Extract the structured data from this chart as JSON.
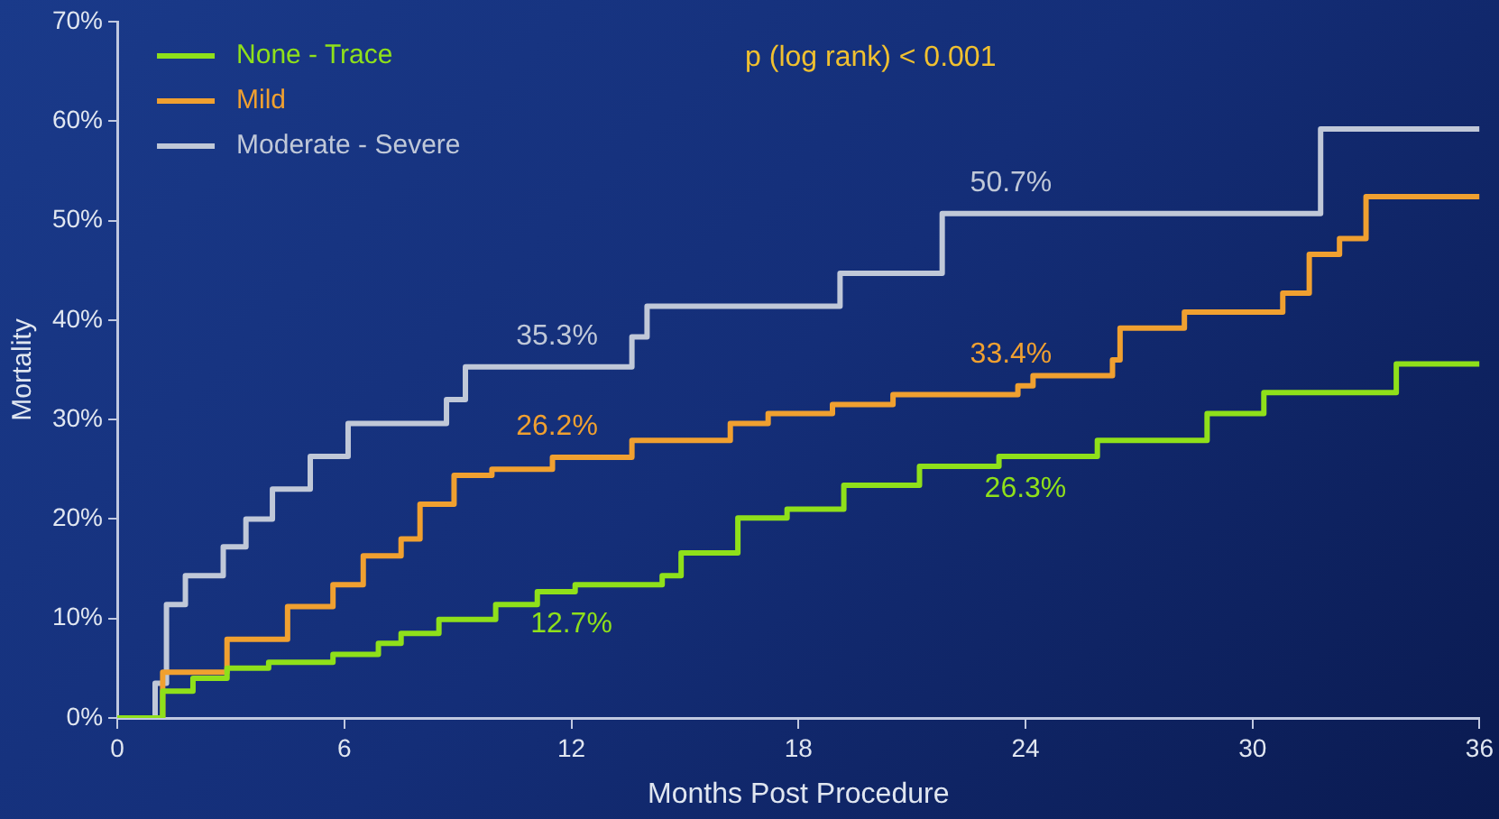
{
  "chart_data": {
    "type": "step",
    "xlabel": "Months Post Procedure",
    "ylabel": "Mortality",
    "xlim": [
      0,
      36
    ],
    "xticks": [
      0,
      6,
      12,
      18,
      24,
      30,
      36
    ],
    "ylim": [
      0,
      70
    ],
    "yticks": [
      {
        "value": 0,
        "label": "0%"
      },
      {
        "value": 10,
        "label": "10%"
      },
      {
        "value": 20,
        "label": "20%"
      },
      {
        "value": 30,
        "label": "30%"
      },
      {
        "value": 40,
        "label": "40%"
      },
      {
        "value": 50,
        "label": "50%"
      },
      {
        "value": 60,
        "label": "60%"
      },
      {
        "value": 70,
        "label": "70%"
      }
    ],
    "grid": false,
    "legend": "top left",
    "marker": "none",
    "line_style": "solid",
    "series": [
      {
        "name": "None - Trace",
        "color": "#8fe01a",
        "x": [
          0,
          1.2,
          2.0,
          2.9,
          4.0,
          5.7,
          6.9,
          7.5,
          8.5,
          10.0,
          11.1,
          12,
          12.1,
          14.4,
          14.9,
          16.4,
          17.7,
          19.2,
          21.2,
          23.3,
          24,
          25.9,
          28.8,
          30.3,
          33.8,
          36
        ],
        "values": [
          0,
          2.7,
          4,
          5,
          5.6,
          6.4,
          7.5,
          8.5,
          9.9,
          11.4,
          12.7,
          12.7,
          13.4,
          14.3,
          16.6,
          20.1,
          21,
          23.4,
          25.3,
          26.3,
          26.3,
          27.9,
          30.6,
          32.7,
          35.6,
          35.6
        ],
        "value_labels": [
          null,
          null,
          null,
          null,
          null,
          null,
          null,
          null,
          null,
          null,
          null,
          "12.7%",
          null,
          null,
          null,
          null,
          null,
          null,
          null,
          null,
          "26.3%",
          null,
          null,
          null,
          null,
          null
        ]
      },
      {
        "name": "Mild",
        "color": "#f0a030",
        "x": [
          0,
          1.2,
          2.9,
          4.5,
          5.7,
          6.5,
          7.5,
          8.0,
          8.9,
          9.9,
          11.5,
          12,
          13.6,
          16.2,
          17.2,
          18.9,
          20.5,
          23.8,
          24,
          24.2,
          26.3,
          26.5,
          28.2,
          30.8,
          31.5,
          32.3,
          33.0,
          36
        ],
        "values": [
          0,
          4.6,
          7.9,
          11.2,
          13.4,
          16.3,
          18,
          21.5,
          24.4,
          25,
          26.2,
          26.2,
          27.9,
          29.6,
          30.6,
          31.5,
          32.5,
          33.4,
          33.4,
          34.4,
          36,
          39.2,
          40.8,
          42.7,
          46.6,
          48.2,
          52.4,
          52.4
        ],
        "value_labels": [
          null,
          null,
          null,
          null,
          null,
          null,
          null,
          null,
          null,
          null,
          null,
          "26.2%",
          null,
          null,
          null,
          null,
          null,
          null,
          "33.4%",
          null,
          null,
          null,
          null,
          null,
          null,
          null,
          null,
          null
        ]
      },
      {
        "name": "Moderate - Severe",
        "color": "#c0c8d8",
        "x": [
          0,
          1.0,
          1.3,
          1.8,
          2.8,
          3.4,
          4.1,
          5.1,
          6.1,
          8.7,
          9.2,
          12,
          13.6,
          14.0,
          19.1,
          21.8,
          24,
          31.8,
          36
        ],
        "values": [
          0,
          3.5,
          11.4,
          14.3,
          17.2,
          20,
          23,
          26.3,
          29.6,
          32,
          35.3,
          35.3,
          38.3,
          41.4,
          44.7,
          50.7,
          50.7,
          59.2,
          59.2
        ],
        "value_labels": [
          null,
          null,
          null,
          null,
          null,
          null,
          null,
          null,
          null,
          null,
          null,
          "35.3%",
          null,
          null,
          null,
          null,
          "50.7%",
          null,
          null
        ]
      }
    ],
    "annotations": [
      "p (log rank) < 0.001"
    ]
  }
}
